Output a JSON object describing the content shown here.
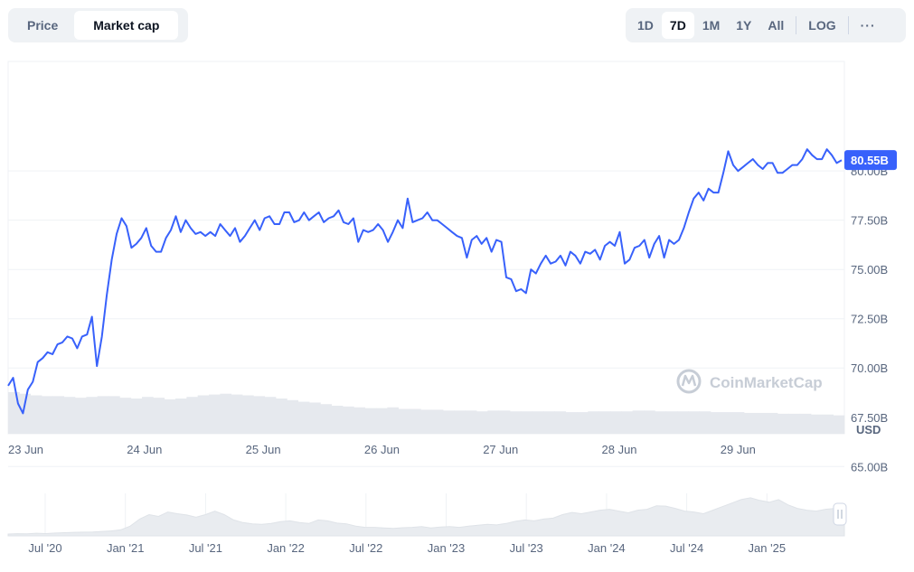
{
  "toggle": {
    "items": [
      "Price",
      "Market cap"
    ],
    "active": 1
  },
  "range": {
    "items": [
      "1D",
      "7D",
      "1M",
      "1Y",
      "All"
    ],
    "active": 1,
    "log_label": "LOG",
    "more_icon": "ellipsis-icon"
  },
  "watermark": "CoinMarketCap",
  "currency": "USD",
  "colors": {
    "line": "#3861fb",
    "volume": "#e6e9ee",
    "grid": "#eff2f5",
    "tag_text": "#ffffff"
  },
  "chart_data": {
    "type": "line",
    "title": "",
    "series": [
      {
        "values": [
          69.1,
          69.5,
          68.2,
          67.7,
          68.9,
          69.3,
          70.3,
          70.5,
          70.8,
          70.7,
          71.2,
          71.3,
          71.6,
          71.5,
          71.0,
          71.6,
          71.7,
          72.6,
          70.1,
          71.6,
          73.7,
          75.5,
          76.8,
          77.6,
          77.2,
          76.1,
          76.3,
          76.6,
          77.1,
          76.2,
          75.9,
          75.9,
          76.6,
          77.0,
          77.7,
          76.9,
          77.5,
          77.1,
          76.8,
          76.9,
          76.7,
          76.9,
          76.7,
          77.3,
          77.0,
          76.7,
          77.1,
          76.4,
          76.7,
          77.1,
          77.5,
          77.0,
          77.6,
          77.7,
          77.3,
          77.3,
          77.9,
          77.9,
          77.4,
          77.5,
          77.9,
          77.5,
          77.7,
          77.9,
          77.4,
          77.6,
          77.7,
          78.0,
          77.4,
          77.3,
          77.6,
          76.4,
          77.0,
          76.9,
          77.0,
          77.3,
          77.0,
          76.4,
          76.9,
          77.5,
          77.1,
          78.6,
          77.4,
          77.5,
          77.6,
          77.9,
          77.5,
          77.5,
          77.3,
          77.1,
          76.9,
          76.7,
          76.6,
          75.6,
          76.5,
          76.7,
          76.3,
          76.6,
          75.9,
          76.5,
          76.4,
          74.6,
          74.5,
          73.9,
          74.0,
          73.8,
          75.0,
          74.8,
          75.3,
          75.7,
          75.3,
          75.4,
          75.7,
          75.2,
          75.9,
          75.7,
          75.3,
          75.9,
          75.8,
          76.0,
          75.5,
          76.2,
          76.4,
          76.2,
          76.9,
          75.3,
          75.5,
          76.1,
          76.2,
          76.5,
          75.6,
          76.3,
          76.7,
          75.6,
          76.5,
          76.3,
          76.5,
          77.1,
          77.9,
          78.6,
          78.9,
          78.5,
          79.1,
          78.9,
          78.9,
          79.9,
          81.0,
          80.3,
          80.0,
          80.2,
          80.4,
          80.6,
          80.3,
          80.1,
          80.4,
          80.4,
          79.9,
          79.9,
          80.1,
          80.3,
          80.3,
          80.6,
          81.1,
          80.8,
          80.6,
          80.6,
          81.1,
          80.8,
          80.4,
          80.55
        ]
      }
    ],
    "x_axis_labels": [
      "23 Jun",
      "24 Jun",
      "25 Jun",
      "26 Jun",
      "27 Jun",
      "28 Jun",
      "29 Jun"
    ],
    "y_axis_labels": [
      "65.00B",
      "67.50B",
      "70.00B",
      "72.50B",
      "75.00B",
      "77.50B",
      "80.00B"
    ],
    "current_value_label": "80.55B",
    "ylim": [
      63.5,
      82.3
    ],
    "volume": [
      52,
      50,
      48,
      47,
      47,
      46,
      45,
      46,
      47,
      47,
      45,
      44,
      46,
      45,
      43,
      44,
      46,
      48,
      49,
      50,
      49,
      48,
      47,
      46,
      44,
      42,
      40,
      39,
      37,
      35,
      34,
      33,
      32,
      32,
      33,
      31,
      31,
      30,
      30,
      29,
      29,
      29,
      28,
      29,
      29,
      28,
      28,
      28,
      28,
      28,
      27,
      27,
      28,
      28,
      28,
      28,
      29,
      29,
      28,
      28,
      28,
      28,
      28,
      27,
      27,
      27,
      26,
      26,
      26,
      25,
      25,
      25,
      24,
      24,
      23
    ],
    "navigator": {
      "labels": [
        "Jul '20",
        "Jan '21",
        "Jul '21",
        "Jan '22",
        "Jul '22",
        "Jan '23",
        "Jul '23",
        "Jan '24",
        "Jul '24",
        "Jan '25"
      ],
      "values": [
        1,
        1.2,
        1.1,
        1.5,
        1.3,
        1.6,
        1.8,
        2,
        2.1,
        2.2,
        2.5,
        2.8,
        3.4,
        5.5,
        9.5,
        12,
        11,
        13.5,
        12.5,
        11.8,
        10.5,
        12,
        14,
        12,
        9,
        7.5,
        6.8,
        6.5,
        7,
        8,
        8.5,
        7.5,
        7,
        9,
        8.5,
        7.2,
        6.8,
        5.5,
        4.8,
        4.8,
        4.5,
        4.2,
        4.6,
        4.8,
        5.2,
        4.5,
        5,
        5.2,
        4.8,
        5.5,
        6,
        6.5,
        6.2,
        7,
        8.2,
        9,
        8.5,
        9.5,
        10,
        12,
        13.2,
        12.5,
        13.5,
        14.5,
        15,
        14,
        13,
        14.5,
        15,
        17,
        16.8,
        15.5,
        14,
        13.5,
        12.5,
        14.5,
        16.5,
        18.5,
        20.5,
        21.5,
        20,
        19,
        20.5,
        17.5,
        15.5,
        14.5,
        14,
        15,
        15.5,
        15.2
      ]
    }
  }
}
